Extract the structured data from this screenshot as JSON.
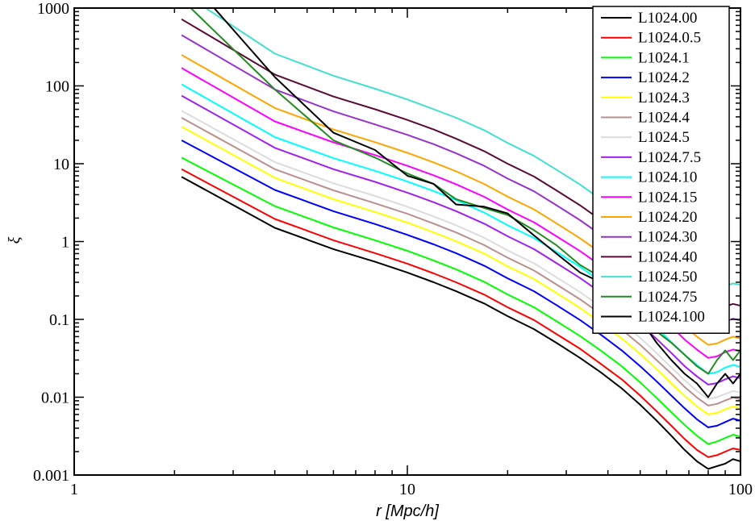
{
  "chart_data": {
    "type": "line",
    "xlabel": "r [Mpc/h]",
    "ylabel": "ξ",
    "xscale": "log",
    "yscale": "log",
    "xlim": [
      1,
      100
    ],
    "ylim": [
      0.001,
      1000
    ],
    "x_ticks": [
      "1",
      "10",
      "100"
    ],
    "y_ticks": [
      "0.001",
      "0.01",
      "0.1",
      "1",
      "10",
      "100",
      "1000"
    ],
    "grid": false,
    "legend_position": "top-right",
    "x": [
      2.1,
      4,
      6,
      8,
      10,
      12,
      14,
      17,
      20,
      24,
      28,
      33,
      38,
      44,
      50,
      56,
      62,
      68,
      74,
      80,
      85,
      90,
      95,
      100
    ],
    "series": [
      {
        "name": "L1024.00",
        "color": "#000000",
        "values": [
          6.8,
          1.5,
          0.8,
          0.55,
          0.4,
          0.3,
          0.23,
          0.16,
          0.11,
          0.075,
          0.05,
          0.032,
          0.021,
          0.013,
          0.008,
          0.005,
          0.0032,
          0.0021,
          0.0015,
          0.0012,
          0.0013,
          0.0014,
          0.0016,
          0.0015
        ]
      },
      {
        "name": "L1024.0.5",
        "color": "#ff0000",
        "values": [
          8.5,
          1.95,
          1.04,
          0.71,
          0.52,
          0.39,
          0.3,
          0.208,
          0.143,
          0.098,
          0.065,
          0.042,
          0.027,
          0.017,
          0.0105,
          0.0066,
          0.0043,
          0.0029,
          0.0021,
          0.0017,
          0.0018,
          0.002,
          0.0022,
          0.0021
        ]
      },
      {
        "name": "L1024.1",
        "color": "#00ff00",
        "values": [
          12,
          2.85,
          1.52,
          1.04,
          0.76,
          0.57,
          0.44,
          0.304,
          0.209,
          0.143,
          0.095,
          0.061,
          0.04,
          0.025,
          0.0155,
          0.0098,
          0.0064,
          0.0044,
          0.0032,
          0.0025,
          0.0027,
          0.003,
          0.0033,
          0.0031
        ]
      },
      {
        "name": "L1024.2",
        "color": "#0000ff",
        "values": [
          20,
          4.6,
          2.45,
          1.68,
          1.22,
          0.92,
          0.71,
          0.49,
          0.337,
          0.23,
          0.153,
          0.098,
          0.064,
          0.04,
          0.025,
          0.016,
          0.0105,
          0.0072,
          0.0052,
          0.0041,
          0.0043,
          0.0048,
          0.0053,
          0.005
        ]
      },
      {
        "name": "L1024.3",
        "color": "#ffff00",
        "values": [
          30,
          6.6,
          3.5,
          2.4,
          1.75,
          1.31,
          1.01,
          0.7,
          0.481,
          0.33,
          0.219,
          0.14,
          0.091,
          0.057,
          0.036,
          0.023,
          0.015,
          0.0104,
          0.0076,
          0.006,
          0.0063,
          0.007,
          0.0076,
          0.0072
        ]
      },
      {
        "name": "L1024.4",
        "color": "#bc8f8f",
        "values": [
          39,
          8.5,
          4.55,
          3.1,
          2.27,
          1.7,
          1.31,
          0.9,
          0.62,
          0.425,
          0.282,
          0.181,
          0.118,
          0.074,
          0.047,
          0.03,
          0.02,
          0.0135,
          0.0099,
          0.0078,
          0.0082,
          0.0091,
          0.0099,
          0.0094
        ]
      },
      {
        "name": "L1024.5",
        "color": "#dcdcdc",
        "values": [
          48,
          10.5,
          5.6,
          3.85,
          2.8,
          2.1,
          1.62,
          1.12,
          0.77,
          0.525,
          0.348,
          0.224,
          0.146,
          0.092,
          0.058,
          0.037,
          0.024,
          0.0165,
          0.012,
          0.0095,
          0.01,
          0.011,
          0.012,
          0.0115
        ]
      },
      {
        "name": "L1024.7.5",
        "color": "#a020f0",
        "values": [
          75,
          16,
          8.5,
          5.85,
          4.25,
          3.2,
          2.46,
          1.7,
          1.17,
          0.8,
          0.53,
          0.34,
          0.222,
          0.14,
          0.088,
          0.056,
          0.037,
          0.025,
          0.0185,
          0.0145,
          0.0152,
          0.017,
          0.0185,
          0.0175
        ]
      },
      {
        "name": "L1024.10",
        "color": "#00ffff",
        "values": [
          105,
          22,
          11.8,
          8.1,
          5.9,
          4.45,
          3.42,
          2.36,
          1.62,
          1.11,
          0.74,
          0.473,
          0.309,
          0.195,
          0.123,
          0.078,
          0.051,
          0.035,
          0.026,
          0.02,
          0.021,
          0.024,
          0.026,
          0.0245
        ]
      },
      {
        "name": "L1024.15",
        "color": "#ff00ff",
        "values": [
          170,
          35,
          18.8,
          12.9,
          9.4,
          7.1,
          5.45,
          3.76,
          2.58,
          1.77,
          1.17,
          0.754,
          0.492,
          0.31,
          0.196,
          0.124,
          0.081,
          0.055,
          0.041,
          0.032,
          0.0335,
          0.038,
          0.041,
          0.039
        ]
      },
      {
        "name": "L1024.20",
        "color": "#ffa500",
        "values": [
          250,
          52,
          27.5,
          18.9,
          13.8,
          10.4,
          8,
          5.5,
          3.78,
          2.59,
          1.72,
          1.1,
          0.72,
          0.455,
          0.287,
          0.182,
          0.119,
          0.081,
          0.06,
          0.047,
          0.049,
          0.055,
          0.06,
          0.057
        ]
      },
      {
        "name": "L1024.30",
        "color": "#9932cc",
        "values": [
          450,
          90,
          47,
          32,
          23.5,
          17.8,
          13.6,
          9.4,
          6.45,
          4.42,
          2.93,
          1.88,
          1.23,
          0.776,
          0.49,
          0.31,
          0.202,
          0.138,
          0.102,
          0.08,
          0.084,
          0.094,
          0.102,
          0.097
        ]
      },
      {
        "name": "L1024.40",
        "color": "#5b0a36",
        "values": [
          720,
          140,
          73,
          50,
          36.5,
          27.5,
          21,
          14.5,
          10,
          6.85,
          4.55,
          2.92,
          1.9,
          1.2,
          0.76,
          0.48,
          0.313,
          0.214,
          0.158,
          0.124,
          0.13,
          0.146,
          0.158,
          0.15
        ]
      },
      {
        "name": "L1024.50",
        "color": "#40e0d0",
        "values": [
          1600,
          260,
          135,
          92,
          67,
          50,
          39,
          27,
          18.5,
          12.6,
          8.4,
          5.4,
          3.5,
          2.2,
          1.4,
          0.885,
          0.577,
          0.394,
          0.29,
          0.228,
          0.24,
          0.268,
          0.29,
          0.277
        ]
      },
      {
        "name": "L1024.75",
        "color": "#228b22",
        "values": [
          1300,
          90,
          20,
          12,
          7.5,
          5.5,
          3.5,
          2.7,
          2.2,
          1.4,
          0.9,
          0.5,
          0.35,
          0.2,
          0.12,
          0.07,
          0.05,
          0.035,
          0.025,
          0.02,
          0.03,
          0.04,
          0.03,
          0.04
        ]
      },
      {
        "name": "L1024.100",
        "color": "#000000",
        "values": [
          3000,
          130,
          25,
          15,
          7,
          5.5,
          3,
          2.8,
          2.3,
          1.2,
          0.7,
          0.4,
          0.3,
          0.15,
          0.1,
          0.05,
          0.03,
          0.02,
          0.015,
          0.01,
          0.015,
          0.02,
          0.015,
          0.02
        ]
      }
    ]
  }
}
